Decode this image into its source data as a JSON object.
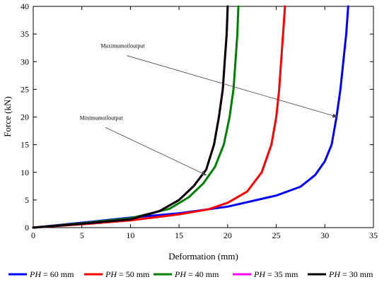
{
  "chart_data": {
    "type": "line",
    "xlabel": "Deformation (mm)",
    "ylabel": "Force (kN)",
    "xlim": [
      0,
      35
    ],
    "ylim": [
      0,
      40
    ],
    "xticks": [
      0,
      5,
      10,
      15,
      20,
      25,
      30,
      35
    ],
    "yticks": [
      0,
      5,
      10,
      15,
      20,
      25,
      30,
      35,
      40
    ],
    "grid": false,
    "legend_position": "bottom",
    "annotations": [
      {
        "text": "Maximumoiloutput",
        "text_at": [
          9.2,
          32.5
        ],
        "arrow_to": [
          31.3,
          20
        ]
      },
      {
        "text": "Minimumoiloutput",
        "text_at": [
          7.0,
          19.5
        ],
        "arrow_to": [
          17.8,
          9.5
        ]
      }
    ],
    "series": [
      {
        "name_prefix": "PH",
        "name_suffix": " = 60 mm",
        "color": "#0000ff",
        "points": [
          [
            0,
            0
          ],
          [
            5,
            0.9
          ],
          [
            10,
            1.8
          ],
          [
            15,
            2.6
          ],
          [
            20,
            3.8
          ],
          [
            25,
            5.8
          ],
          [
            27.5,
            7.4
          ],
          [
            29,
            9.5
          ],
          [
            30,
            12
          ],
          [
            30.7,
            15
          ],
          [
            31.2,
            20
          ],
          [
            31.6,
            25
          ],
          [
            31.9,
            30
          ],
          [
            32.2,
            35
          ],
          [
            32.4,
            40
          ]
        ]
      },
      {
        "name_prefix": "PH",
        "name_suffix": " = 50 mm",
        "color": "#ff0000",
        "points": [
          [
            0,
            0
          ],
          [
            5,
            0.6
          ],
          [
            10,
            1.3
          ],
          [
            15,
            2.4
          ],
          [
            18,
            3.3
          ],
          [
            20,
            4.5
          ],
          [
            22,
            6.5
          ],
          [
            23.5,
            10
          ],
          [
            24.5,
            15
          ],
          [
            25,
            20
          ],
          [
            25.3,
            25
          ],
          [
            25.5,
            30
          ],
          [
            25.7,
            35
          ],
          [
            25.9,
            40
          ]
        ]
      },
      {
        "name_prefix": "PH",
        "name_suffix": " = 40 mm",
        "color": "#008000",
        "points": [
          [
            0,
            0
          ],
          [
            5,
            0.8
          ],
          [
            10,
            1.7
          ],
          [
            14,
            3.4
          ],
          [
            16,
            5.5
          ],
          [
            17.5,
            8
          ],
          [
            18.7,
            11
          ],
          [
            19.6,
            15
          ],
          [
            20.2,
            20
          ],
          [
            20.6,
            25
          ],
          [
            20.8,
            30
          ],
          [
            21.0,
            35
          ],
          [
            21.1,
            40
          ]
        ]
      },
      {
        "name_prefix": "PH",
        "name_suffix": " = 35 mm",
        "color": "#ff00ff",
        "points": [
          [
            0,
            0
          ],
          [
            5,
            0.7
          ],
          [
            10,
            1.5
          ],
          [
            13,
            3
          ],
          [
            15,
            5
          ],
          [
            16.5,
            7.5
          ],
          [
            17.8,
            10.5
          ],
          [
            18.6,
            15
          ],
          [
            19.1,
            20
          ],
          [
            19.5,
            25
          ],
          [
            19.7,
            30
          ],
          [
            19.9,
            35
          ],
          [
            20.0,
            40
          ]
        ]
      },
      {
        "name_prefix": "PH",
        "name_suffix": " = 30 mm",
        "color": "#000000",
        "points": [
          [
            0,
            0
          ],
          [
            5,
            0.7
          ],
          [
            10,
            1.5
          ],
          [
            13,
            3
          ],
          [
            15,
            5
          ],
          [
            16.5,
            7.5
          ],
          [
            17.8,
            10.5
          ],
          [
            18.6,
            15
          ],
          [
            19.1,
            20
          ],
          [
            19.5,
            25
          ],
          [
            19.7,
            30
          ],
          [
            19.9,
            35
          ],
          [
            20.0,
            40
          ]
        ]
      }
    ]
  }
}
